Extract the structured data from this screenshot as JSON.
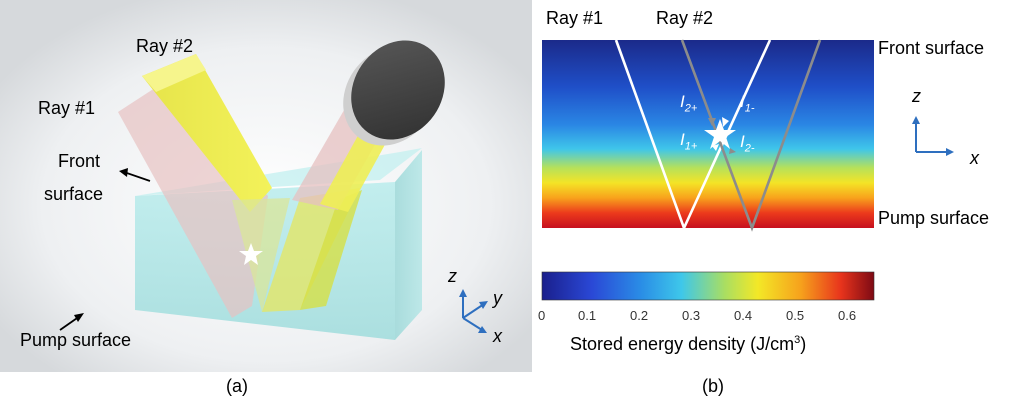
{
  "panel_a": {
    "caption": "(a)",
    "labels": {
      "ray2": "Ray #2",
      "ray1": "Ray #1",
      "front_surface_line1": "Front",
      "front_surface_line2": "surface",
      "pump_surface": "Pump surface"
    },
    "axes": {
      "z": "z",
      "y": "y",
      "x": "x"
    }
  },
  "panel_b": {
    "caption": "(b)",
    "labels": {
      "ray1": "Ray #1",
      "ray2": "Ray #2",
      "front_surface": "Front surface",
      "pump_surface": "Pump surface"
    },
    "intensity_labels": {
      "i2plus": {
        "base": "I",
        "sub": "2+"
      },
      "i1minus": {
        "base": "I",
        "sub": "1-"
      },
      "i1plus": {
        "base": "I",
        "sub": "1+"
      },
      "i2minus": {
        "base": "I",
        "sub": "2-"
      }
    },
    "axes": {
      "z": "z",
      "x": "x"
    },
    "colorbar": {
      "ticks": [
        "0",
        "0.1",
        "0.2",
        "0.3",
        "0.4",
        "0.5",
        "0.6"
      ],
      "label_main": "Stored energy density (J/cm",
      "label_sup": "3",
      "label_close": ")"
    }
  },
  "colors": {
    "ray1": "#ffffff",
    "ray2": "#8c8c8c",
    "axis_arrow": "#2e6fbf",
    "crystal": "#a9e3e3"
  }
}
